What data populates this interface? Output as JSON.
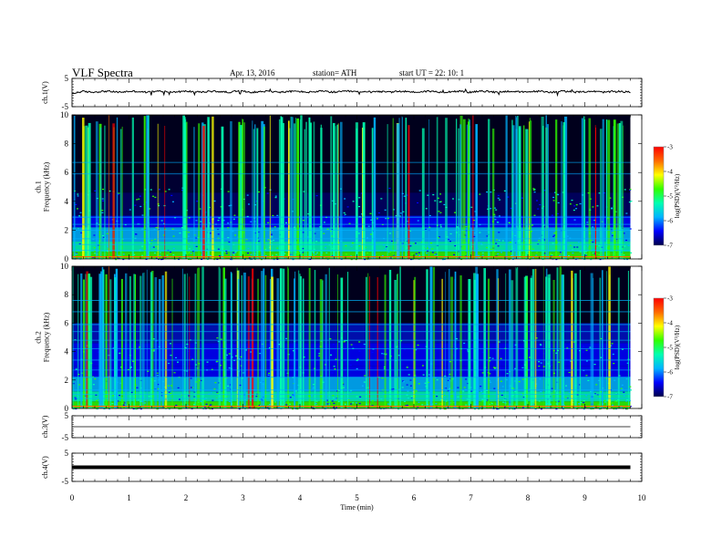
{
  "header": {
    "title": "VLF  Spectra",
    "date": "Apr. 13, 2016",
    "station": "station= ATH",
    "start": "start  UT  =   22: 10: 1"
  },
  "chart_data": [
    {
      "type": "line",
      "panel": "ch1-waveform",
      "ylabel": "ch.1(V)",
      "ylim": [
        -5,
        5
      ],
      "yticks": [
        "5",
        "-5"
      ],
      "description_values": {
        "x_range_min": [
          0,
          9.8
        ],
        "approx_level": 0.3
      }
    },
    {
      "type": "heatmap",
      "panel": "ch1-spectrogram",
      "ylabel": "ch.1\nFrequency  (kHz)",
      "ylim": [
        0,
        10
      ],
      "yticks": [
        "0",
        "2",
        "4",
        "6",
        "8",
        "10"
      ],
      "xlim": [
        0,
        9.8
      ],
      "colorbar": {
        "label": "log(PSD)(V²/Hz)",
        "range": [
          -7,
          -3
        ],
        "ticks": [
          "-3",
          "-4",
          "-5",
          "-6",
          "-7"
        ]
      }
    },
    {
      "type": "heatmap",
      "panel": "ch2-spectrogram",
      "ylabel": "ch.2\nFrequency  (kHz)",
      "ylim": [
        0,
        10
      ],
      "yticks": [
        "0",
        "2",
        "4",
        "6",
        "8",
        "10"
      ],
      "xlim": [
        0,
        9.8
      ],
      "colorbar": {
        "label": "log(PSD)(V²/Hz)",
        "range": [
          -7,
          -3
        ],
        "ticks": [
          "-3",
          "-4",
          "-5",
          "-6",
          "-7"
        ]
      }
    },
    {
      "type": "line",
      "panel": "ch3-waveform",
      "ylabel": "ch.3(V)",
      "ylim": [
        -5,
        5
      ],
      "yticks": [
        "5",
        "-5"
      ],
      "description_values": {
        "approx_level": 0
      }
    },
    {
      "type": "line",
      "panel": "ch4-waveform",
      "ylabel": "ch.4(V)",
      "ylim": [
        -5,
        5
      ],
      "yticks": [
        "5",
        "-5"
      ],
      "description_values": {
        "approx_level": 0
      }
    }
  ],
  "xaxis": {
    "label": "Time  (min)",
    "range": [
      0,
      10
    ],
    "ticks": [
      "0",
      "1",
      "2",
      "3",
      "4",
      "5",
      "6",
      "7",
      "8",
      "9",
      "10"
    ]
  },
  "colors": {
    "spec_background": "#000000",
    "colormap": [
      "#00004a",
      "#0000ff",
      "#00b4ff",
      "#00ffb0",
      "#30ff00",
      "#ffff00",
      "#ff6a00",
      "#ff0000",
      "#ffffff"
    ]
  }
}
